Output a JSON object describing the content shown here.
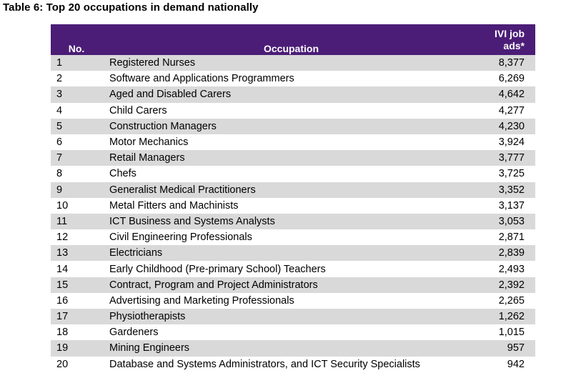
{
  "caption": "Table 6: Top 20 occupations in demand nationally",
  "colors": {
    "header_bg": "#4b1d77",
    "header_text": "#ffffff",
    "band": "#d9d9d9"
  },
  "table": {
    "headers": {
      "no": "No.",
      "occupation": "Occupation",
      "ads_line1": "IVI job",
      "ads_line2": "ads*"
    },
    "rows": [
      {
        "no": "1",
        "occupation": "Registered Nurses",
        "ads": "8,377"
      },
      {
        "no": "2",
        "occupation": "Software and Applications Programmers",
        "ads": "6,269"
      },
      {
        "no": "3",
        "occupation": "Aged and Disabled Carers",
        "ads": "4,642"
      },
      {
        "no": "4",
        "occupation": "Child Carers",
        "ads": "4,277"
      },
      {
        "no": "5",
        "occupation": "Construction Managers",
        "ads": "4,230"
      },
      {
        "no": "6",
        "occupation": "Motor Mechanics",
        "ads": "3,924"
      },
      {
        "no": "7",
        "occupation": "Retail Managers",
        "ads": "3,777"
      },
      {
        "no": "8",
        "occupation": "Chefs",
        "ads": "3,725"
      },
      {
        "no": "9",
        "occupation": "Generalist Medical Practitioners",
        "ads": "3,352"
      },
      {
        "no": "10",
        "occupation": "Metal Fitters and Machinists",
        "ads": "3,137"
      },
      {
        "no": "11",
        "occupation": "ICT Business and Systems Analysts",
        "ads": "3,053"
      },
      {
        "no": "12",
        "occupation": "Civil Engineering Professionals",
        "ads": "2,871"
      },
      {
        "no": "13",
        "occupation": "Electricians",
        "ads": "2,839"
      },
      {
        "no": "14",
        "occupation": "Early Childhood (Pre-primary School) Teachers",
        "ads": "2,493"
      },
      {
        "no": "15",
        "occupation": "Contract, Program and Project Administrators",
        "ads": "2,392"
      },
      {
        "no": "16",
        "occupation": "Advertising and Marketing Professionals",
        "ads": "2,265"
      },
      {
        "no": "17",
        "occupation": "Physiotherapists",
        "ads": "1,262"
      },
      {
        "no": "18",
        "occupation": "Gardeners",
        "ads": "1,015"
      },
      {
        "no": "19",
        "occupation": "Mining Engineers",
        "ads": "957"
      },
      {
        "no": "20",
        "occupation": "Database and Systems Administrators, and ICT Security Specialists",
        "ads": "942"
      }
    ]
  }
}
